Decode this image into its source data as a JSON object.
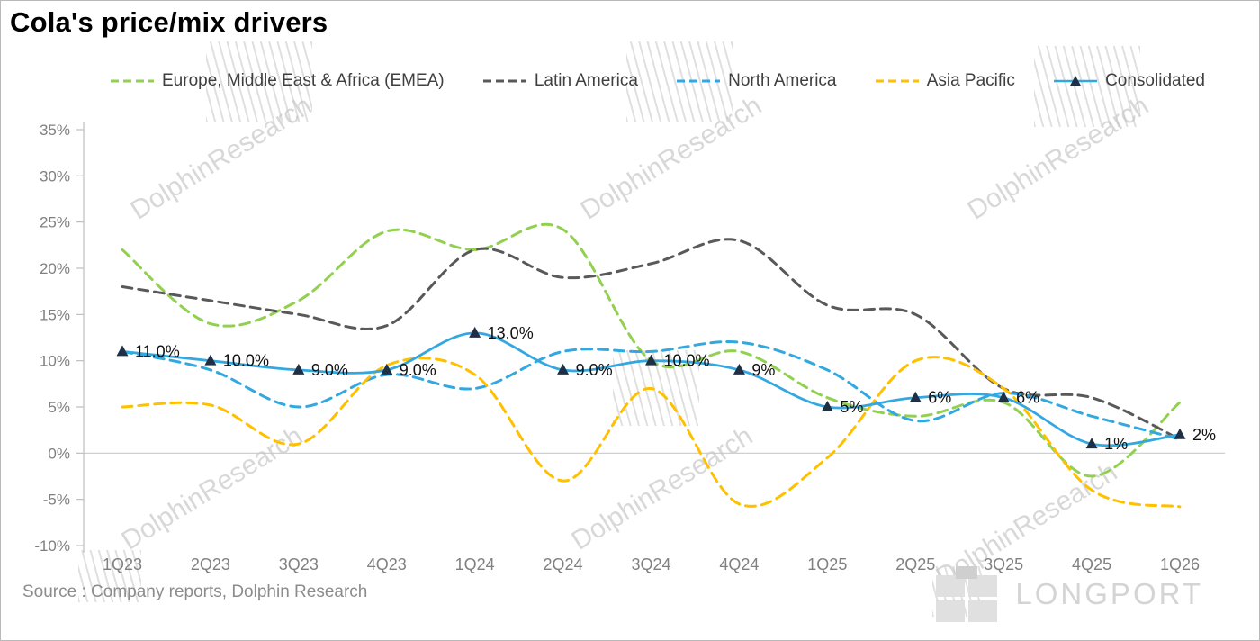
{
  "title": "Cola's price/mix drivers",
  "source": "Source : Company reports, Dolphin Research",
  "watermark": {
    "text": "DolphinResearch"
  },
  "logo": {
    "text": "LONGPORT"
  },
  "chart_data": {
    "type": "line",
    "title": "Cola's price/mix drivers",
    "categories": [
      "1Q23",
      "2Q23",
      "3Q23",
      "4Q23",
      "1Q24",
      "2Q24",
      "3Q24",
      "4Q24",
      "1Q25",
      "2Q25",
      "3Q25",
      "4Q25",
      "1Q26"
    ],
    "ylim": [
      -10,
      35
    ],
    "yticks": [
      35,
      30,
      25,
      20,
      15,
      10,
      5,
      0,
      -5,
      -10
    ],
    "ytick_suffix": "%",
    "grid": "zero-line-only",
    "legend_position": "top",
    "axis_color": "#bfbfbf",
    "tick_label_color": "#808080",
    "zero_line_color": "#c9c9c9",
    "label_color": "#111111",
    "series": [
      {
        "name": "Europe, Middle East & Africa (EMEA)",
        "color": "#92d050",
        "style": "dashed",
        "values": [
          22,
          14,
          16.5,
          24,
          22,
          24.2,
          10,
          11,
          6,
          4,
          5.5,
          -2.5,
          5.5
        ]
      },
      {
        "name": "Latin America",
        "color": "#595959",
        "style": "dashed",
        "values": [
          18,
          16.5,
          15,
          13.8,
          22,
          19,
          20.5,
          23,
          16,
          15,
          7,
          6,
          1.5
        ]
      },
      {
        "name": "North America",
        "color": "#33a8e0",
        "style": "dashed",
        "values": [
          11,
          9,
          5,
          8.5,
          7,
          11,
          11,
          12,
          9,
          3.5,
          6.5,
          4,
          1.5
        ]
      },
      {
        "name": "Asia Pacific",
        "color": "#ffc000",
        "style": "dashed",
        "values": [
          5,
          5.2,
          1,
          9.5,
          8.5,
          -3,
          7,
          -5.5,
          -0.5,
          10,
          7,
          -4,
          -5.8
        ]
      },
      {
        "name": "Consolidated",
        "color": "#33a8e0",
        "style": "solid",
        "marker": "triangle",
        "marker_color": "#1f2f45",
        "values": [
          11,
          10,
          9,
          9,
          13,
          9,
          10,
          9,
          5,
          6,
          6,
          1,
          2
        ],
        "labels": [
          "11.0%",
          "10.0%",
          "9.0%",
          "9.0%",
          "13.0%",
          "9.0%",
          "10.0%",
          "9%",
          "5%",
          "6%",
          "6%",
          "1%",
          "2%"
        ]
      }
    ]
  }
}
